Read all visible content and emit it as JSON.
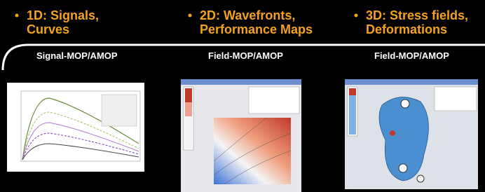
{
  "columns": [
    {
      "heading_lines": [
        "1D: Signals,",
        "Curves"
      ],
      "subheading": "Signal-MOP/AMOP"
    },
    {
      "heading_lines": [
        "2D: Wavefronts,",
        "Performance Maps"
      ],
      "subheading": "Field-MOP/AMOP"
    },
    {
      "heading_lines": [
        "3D: Stress fields,",
        "Deformations"
      ],
      "subheading": "Field-MOP/AMOP"
    }
  ]
}
